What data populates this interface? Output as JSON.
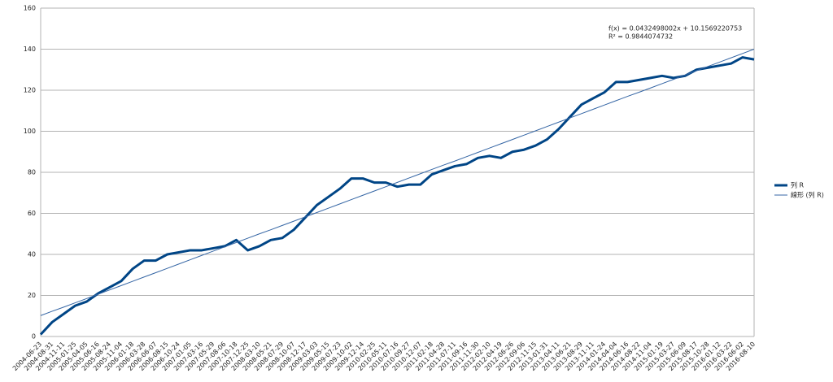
{
  "chart_data": {
    "type": "line",
    "categories": [
      "2004-06-23",
      "2004-08-31",
      "2004-11-11",
      "2005-01-25",
      "2005-04-05",
      "2005-06-16",
      "2005-08-24",
      "2005-11-04",
      "2006-01-18",
      "2006-03-28",
      "2006-06-07",
      "2006-08-15",
      "2006-10-24",
      "2007-01-05",
      "2007-03-16",
      "2007-05-29",
      "2007-08-06",
      "2007-10-18",
      "2007-12-25",
      "2008-03-10",
      "2008-05-21",
      "2008-07-29",
      "2008-10-07",
      "2008-12-17",
      "2009-03-03",
      "2009-05-15",
      "2009-07-23",
      "2009-10-02",
      "2009-12-14",
      "2010-02-25",
      "2010-05-11",
      "2010-07-16",
      "2010-09-27",
      "2010-12-07",
      "2011-02-18",
      "2011-04-28",
      "2011-07-11",
      "2011-09-16",
      "2011-11-30",
      "2012-02-10",
      "2012-04-19",
      "2012-06-26",
      "2012-09-06",
      "2012-11-15",
      "2013-01-31",
      "2013-04-11",
      "2013-06-21",
      "2013-08-29",
      "2013-11-11",
      "2014-01-24",
      "2014-04-04",
      "2014-06-16",
      "2014-08-22",
      "2014-11-04",
      "2015-01-19",
      "2015-03-27",
      "2015-06-09",
      "2015-08-17",
      "2015-10-28",
      "2016-01-12",
      "2016-03-22",
      "2016-06-02",
      "2016-08-10"
    ],
    "series": [
      {
        "name": "列 R",
        "color": "#004586",
        "width": 3,
        "values": [
          1,
          7,
          11,
          15,
          17,
          21,
          24,
          27,
          33,
          37,
          37,
          40,
          41,
          42,
          42,
          43,
          44,
          47,
          42,
          44,
          47,
          48,
          52,
          58,
          64,
          68,
          72,
          77,
          77,
          75,
          75,
          73,
          74,
          74,
          79,
          81,
          83,
          84,
          87,
          88,
          87,
          90,
          91,
          93,
          96,
          101,
          107,
          113,
          116,
          119,
          124,
          124,
          125,
          126,
          127,
          126,
          127,
          130,
          131,
          132,
          133,
          136,
          135
        ]
      },
      {
        "name": "線形 (列 R)",
        "color": "#3465a4",
        "width": 1,
        "values": [
          10.2,
          12.3,
          14.3,
          16.4,
          18.5,
          20.6,
          22.7,
          24.8,
          26.9,
          29.0,
          31.1,
          33.2,
          35.3,
          37.4,
          39.5,
          41.6,
          43.7,
          45.8,
          47.9,
          50.0,
          52.0,
          54.1,
          56.2,
          58.3,
          60.4,
          62.5,
          64.6,
          66.7,
          68.8,
          70.9,
          73.0,
          75.1,
          77.2,
          79.3,
          81.4,
          83.5,
          85.5,
          87.6,
          89.7,
          91.8,
          93.9,
          96.0,
          98.1,
          100.2,
          102.3,
          104.4,
          106.5,
          108.6,
          110.7,
          112.8,
          114.9,
          117.0,
          119.0,
          121.1,
          123.2,
          125.3,
          127.4,
          129.5,
          131.6,
          133.7,
          135.8,
          137.9,
          140.0
        ]
      }
    ],
    "annotations": [
      "f(x) = 0.0432498002x + 10.1569220753",
      "R² = 0.9844074732"
    ],
    "ylim": [
      0,
      160
    ],
    "yticks": [
      0,
      20,
      40,
      60,
      80,
      100,
      120,
      140,
      160
    ],
    "grid": true,
    "legend": "right"
  }
}
